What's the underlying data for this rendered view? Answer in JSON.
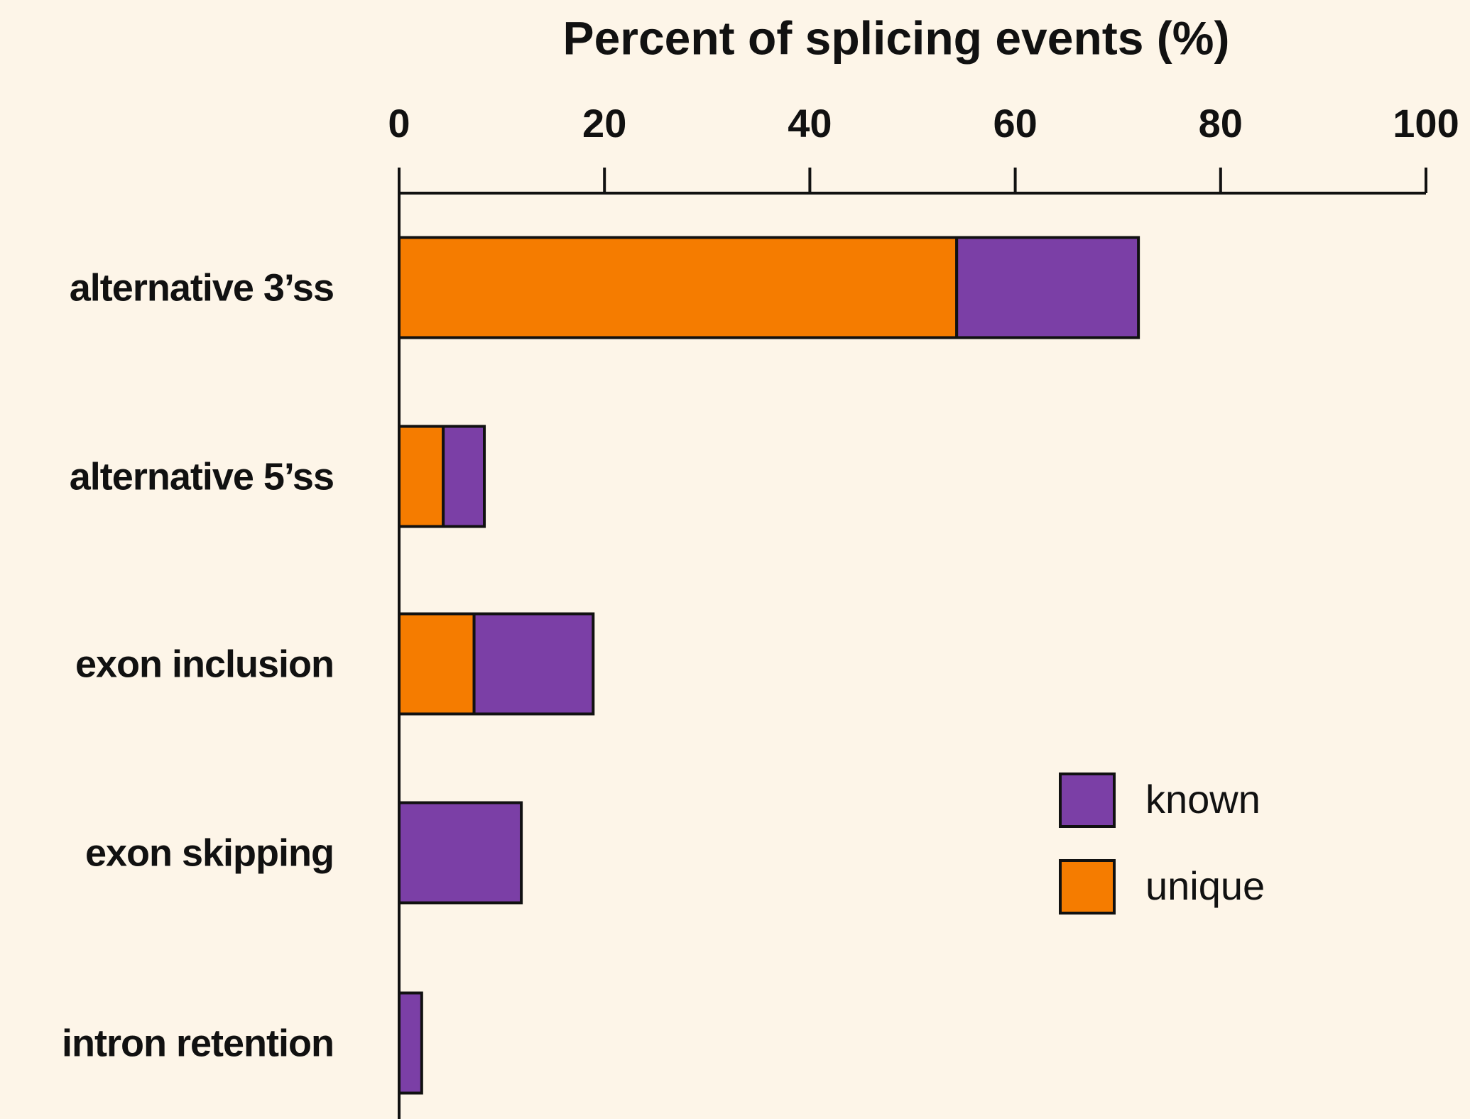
{
  "chart_data": {
    "type": "stacked-barh",
    "title": "Percent of splicing events (%)",
    "categories": [
      "alternative 3’ss",
      "alternative 5’ss",
      "exon inclusion",
      "exon skipping",
      "intron retention"
    ],
    "series": [
      {
        "name": "unique",
        "color": "#f57c00",
        "values": [
          54.3,
          4.3,
          7.3,
          0,
          0
        ]
      },
      {
        "name": "known",
        "color": "#7b3fa6",
        "values": [
          17.7,
          4.0,
          11.6,
          11.9,
          2.2
        ]
      }
    ],
    "xlim": [
      0,
      100
    ],
    "xticks": [
      0,
      20,
      40,
      60,
      80,
      100
    ],
    "grid": false,
    "legend": "lower right"
  }
}
